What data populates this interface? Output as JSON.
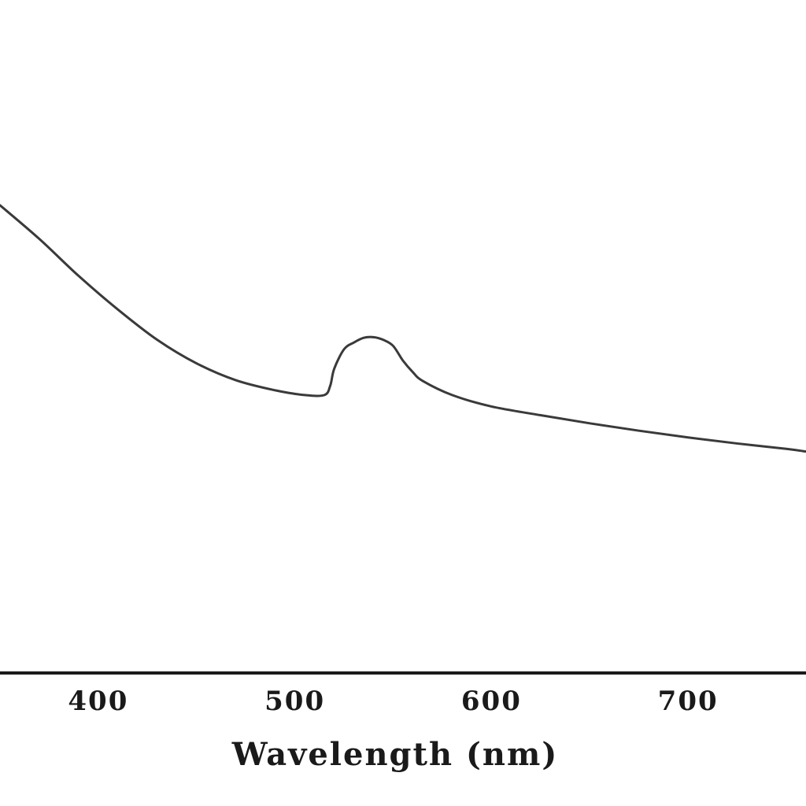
{
  "chart_data": {
    "type": "line",
    "title": "",
    "xlabel": "Wavelength (nm)",
    "ylabel": "",
    "xlim": [
      350,
      760
    ],
    "ylim": [
      0,
      1
    ],
    "xticks": [
      400,
      500,
      600,
      700
    ],
    "xtick_labels": [
      "400",
      "500",
      "600",
      "700"
    ],
    "grid": false,
    "series": [
      {
        "line_color": "#3a3a3a",
        "x": [
          350,
          370,
          390,
          410,
          430,
          450,
          470,
          490,
          505,
          515,
          518,
          520,
          525,
          530,
          535,
          540,
          545,
          550,
          555,
          560,
          565,
          580,
          600,
          625,
          650,
          675,
          700,
          725,
          750,
          760
        ],
        "y": [
          0.695,
          0.645,
          0.59,
          0.54,
          0.495,
          0.46,
          0.435,
          0.42,
          0.413,
          0.413,
          0.427,
          0.452,
          0.481,
          0.491,
          0.498,
          0.499,
          0.495,
          0.486,
          0.464,
          0.447,
          0.434,
          0.413,
          0.396,
          0.383,
          0.371,
          0.36,
          0.35,
          0.341,
          0.333,
          0.329
        ]
      }
    ]
  }
}
